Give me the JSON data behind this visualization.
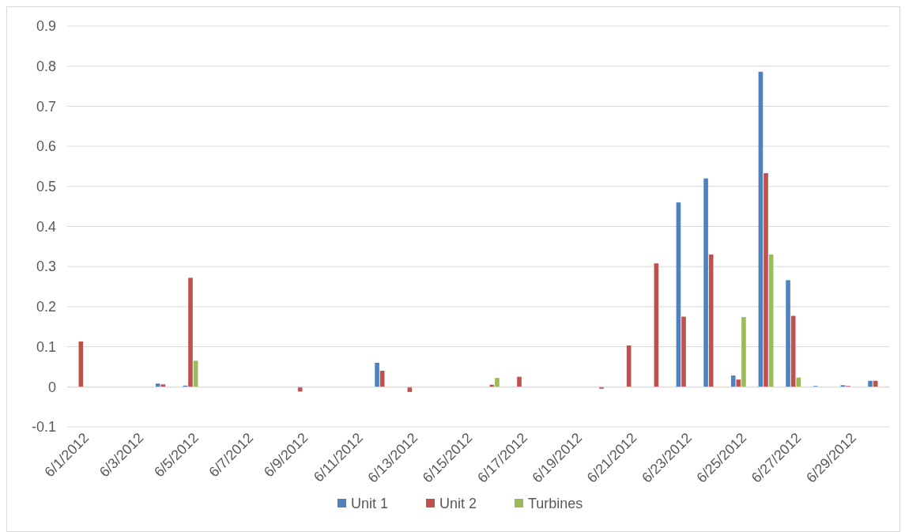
{
  "chart_data": {
    "type": "bar",
    "categories": [
      "6/1/2012",
      null,
      "6/3/2012",
      null,
      "6/5/2012",
      null,
      "6/7/2012",
      null,
      "6/9/2012",
      null,
      "6/11/2012",
      null,
      "6/13/2012",
      null,
      "6/15/2012",
      null,
      "6/17/2012",
      null,
      "6/19/2012",
      null,
      "6/21/2012",
      null,
      "6/23/2012",
      null,
      "6/25/2012",
      null,
      "6/27/2012",
      null,
      "6/29/2012",
      null
    ],
    "series": [
      {
        "name": "Unit 1",
        "color": "#4f81bd",
        "values": [
          0,
          0,
          0,
          0.008,
          0.003,
          0,
          0,
          0,
          0,
          0,
          0,
          0.06,
          0,
          0,
          0,
          0,
          0,
          0,
          0,
          0,
          0,
          0,
          0.46,
          0.52,
          0.028,
          0.786,
          0.266,
          0.002,
          0.004,
          0.015
        ]
      },
      {
        "name": "Unit 2",
        "color": "#c0504d",
        "values": [
          0.113,
          0,
          0,
          0.006,
          0.272,
          0,
          null,
          0,
          -0.012,
          0,
          0,
          0.04,
          -0.013,
          0,
          0,
          0.005,
          0.025,
          0,
          null,
          -0.005,
          0.103,
          0.308,
          0.175,
          0.33,
          0.018,
          0.533,
          0.177,
          null,
          0.002,
          0.015
        ]
      },
      {
        "name": "Turbines",
        "color": "#9bbb59",
        "values": [
          0,
          0,
          0,
          0,
          0.065,
          0,
          0,
          0,
          0,
          0,
          0,
          0,
          0,
          0,
          0,
          0.022,
          0,
          0,
          0,
          0,
          0,
          0,
          0,
          0,
          0.174,
          0.33,
          0.023,
          0,
          0,
          0
        ]
      }
    ],
    "ylim": [
      -0.1,
      0.9
    ],
    "yticks": [
      -0.1,
      0,
      0.1,
      0.2,
      0.3,
      0.4,
      0.5,
      0.6,
      0.7,
      0.8,
      0.9
    ],
    "grid": "y",
    "legend": "bottom"
  }
}
